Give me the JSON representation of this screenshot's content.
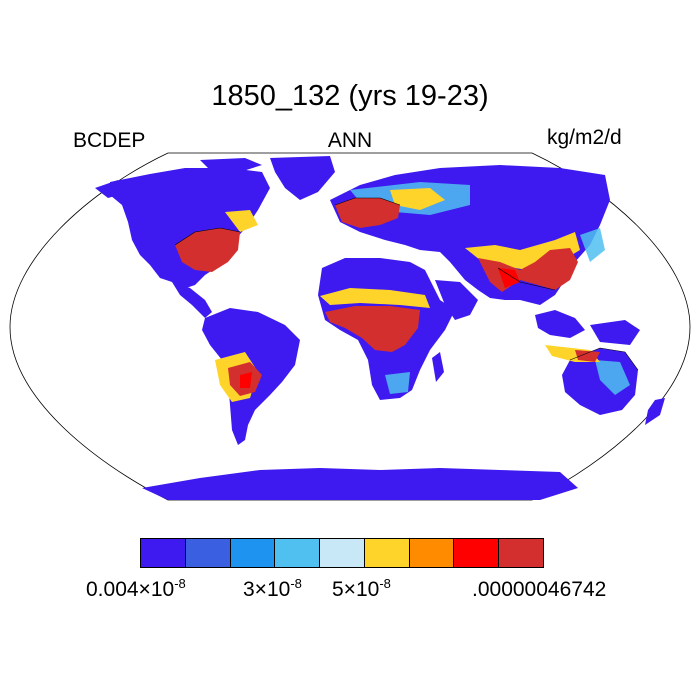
{
  "title": "1850_132 (yrs 19-23)",
  "left_label": "BCDEP",
  "center_label": "ANN",
  "right_label": "kg/m2/d",
  "colorbar": {
    "colors": [
      "#3e1af0",
      "#3a5fe0",
      "#1e94f0",
      "#50c0f0",
      "#c8e8f8",
      "#ffd42a",
      "#ff8c00",
      "#ff0000",
      "#d32f2f"
    ],
    "labels": [
      {
        "base": "0.004×10",
        "exp": "-8"
      },
      {
        "base": "3×10",
        "exp": "-8"
      },
      {
        "base": "5×10",
        "exp": "-8"
      },
      {
        "base": ".00000046742",
        "exp": ""
      }
    ]
  },
  "map": {
    "projection": "robinson-like",
    "ocean_color": "#ffffff",
    "outline_color": "#000000"
  }
}
